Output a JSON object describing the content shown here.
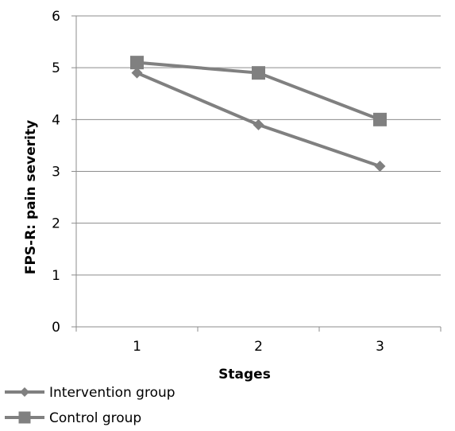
{
  "chart_data": {
    "type": "line",
    "title": "",
    "xlabel": "Stages",
    "ylabel": "FPS-R: pain severity",
    "categories": [
      "1",
      "2",
      "3"
    ],
    "ylim": [
      0,
      6
    ],
    "yticks": [
      "0",
      "1",
      "2",
      "3",
      "4",
      "5",
      "6"
    ],
    "grid": "horizontal",
    "legend_position": "bottom-left",
    "series": [
      {
        "name": "Intervention group",
        "values": [
          4.9,
          3.9,
          3.1
        ],
        "marker": "diamond",
        "color": "#808080"
      },
      {
        "name": "Control group",
        "values": [
          5.1,
          4.9,
          4.0
        ],
        "marker": "square",
        "color": "#808080"
      }
    ]
  }
}
